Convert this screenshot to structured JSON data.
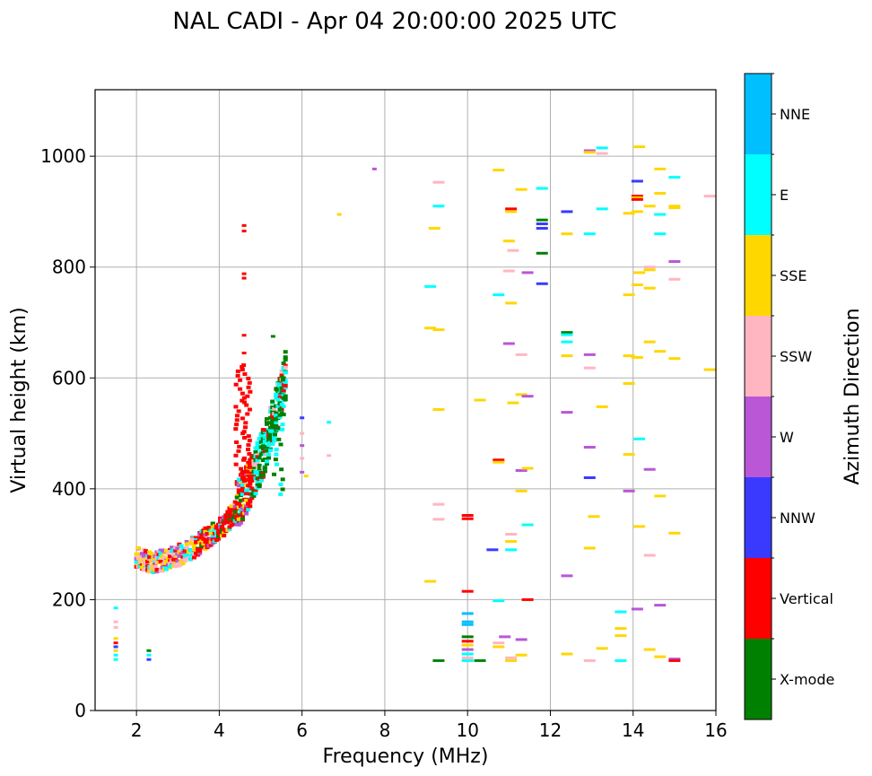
{
  "chart_data": {
    "type": "scatter",
    "title": "NAL CADI - Apr 04 20:00:00 2025 UTC",
    "xlabel": "Frequency (MHz)",
    "ylabel": "Virtual height (km)",
    "xlim": [
      1,
      16
    ],
    "ylim": [
      0,
      1120
    ],
    "xticks": [
      2,
      4,
      6,
      8,
      10,
      12,
      14,
      16
    ],
    "yticks": [
      0,
      200,
      400,
      600,
      800,
      1000
    ],
    "grid": true,
    "colorbar": {
      "label": "Azimuth Direction",
      "categories": [
        {
          "name": "X-mode",
          "color": "#008000"
        },
        {
          "name": "Vertical",
          "color": "#ff0000"
        },
        {
          "name": "NNW",
          "color": "#3a3aff"
        },
        {
          "name": "W",
          "color": "#b957d6"
        },
        {
          "name": "SSW",
          "color": "#ffb6c1"
        },
        {
          "name": "SSE",
          "color": "#ffd700"
        },
        {
          "name": "E",
          "color": "#00ffff"
        },
        {
          "name": "NNE",
          "color": "#00bfff"
        }
      ]
    },
    "trace": [
      {
        "f": 2.0,
        "h": 270
      },
      {
        "f": 2.2,
        "h": 265
      },
      {
        "f": 2.4,
        "h": 263
      },
      {
        "f": 2.6,
        "h": 264
      },
      {
        "f": 2.8,
        "h": 268
      },
      {
        "f": 3.0,
        "h": 274
      },
      {
        "f": 3.2,
        "h": 282
      },
      {
        "f": 3.4,
        "h": 290
      },
      {
        "f": 3.6,
        "h": 300
      },
      {
        "f": 3.8,
        "h": 310
      },
      {
        "f": 4.0,
        "h": 320
      },
      {
        "f": 4.2,
        "h": 335
      },
      {
        "f": 4.4,
        "h": 355
      },
      {
        "f": 4.6,
        "h": 378
      },
      {
        "f": 4.8,
        "h": 405
      },
      {
        "f": 5.0,
        "h": 440
      },
      {
        "f": 5.2,
        "h": 480
      },
      {
        "f": 5.4,
        "h": 530
      },
      {
        "f": 5.6,
        "h": 590
      }
    ],
    "trace_spread_km": 40,
    "points": [
      {
        "f": 1.5,
        "h": 185,
        "c": "E"
      },
      {
        "f": 1.5,
        "h": 160,
        "c": "SSW"
      },
      {
        "f": 1.5,
        "h": 150,
        "c": "SSW"
      },
      {
        "f": 1.5,
        "h": 130,
        "c": "SSE"
      },
      {
        "f": 1.5,
        "h": 122,
        "c": "Vertical"
      },
      {
        "f": 1.5,
        "h": 115,
        "c": "NNW"
      },
      {
        "f": 1.5,
        "h": 108,
        "c": "SSE"
      },
      {
        "f": 1.5,
        "h": 100,
        "c": "E"
      },
      {
        "f": 1.5,
        "h": 92,
        "c": "E"
      },
      {
        "f": 2.3,
        "h": 108,
        "c": "X-mode"
      },
      {
        "f": 2.3,
        "h": 100,
        "c": "E"
      },
      {
        "f": 2.3,
        "h": 92,
        "c": "NNW"
      },
      {
        "f": 4.6,
        "h": 875,
        "c": "Vertical"
      },
      {
        "f": 4.6,
        "h": 865,
        "c": "Vertical"
      },
      {
        "f": 4.6,
        "h": 788,
        "c": "Vertical"
      },
      {
        "f": 4.6,
        "h": 780,
        "c": "Vertical"
      },
      {
        "f": 4.6,
        "h": 677,
        "c": "Vertical"
      },
      {
        "f": 4.6,
        "h": 645,
        "c": "Vertical"
      },
      {
        "f": 5.3,
        "h": 675,
        "c": "X-mode"
      },
      {
        "f": 6.0,
        "h": 528,
        "c": "NNW"
      },
      {
        "f": 6.0,
        "h": 500,
        "c": "SSW"
      },
      {
        "f": 6.0,
        "h": 478,
        "c": "W"
      },
      {
        "f": 6.0,
        "h": 455,
        "c": "SSW"
      },
      {
        "f": 6.0,
        "h": 430,
        "c": "W"
      },
      {
        "f": 6.1,
        "h": 423,
        "c": "SSE"
      },
      {
        "f": 6.65,
        "h": 520,
        "c": "E"
      },
      {
        "f": 6.65,
        "h": 460,
        "c": "SSW"
      },
      {
        "f": 7.75,
        "h": 977,
        "c": "W"
      },
      {
        "f": 6.9,
        "h": 895,
        "c": "SSE"
      },
      {
        "f": 9.1,
        "h": 765,
        "c": "E"
      },
      {
        "f": 9.1,
        "h": 690,
        "c": "SSE"
      },
      {
        "f": 9.3,
        "h": 687,
        "c": "SSE"
      },
      {
        "f": 9.2,
        "h": 870,
        "c": "SSE"
      },
      {
        "f": 9.3,
        "h": 953,
        "c": "SSW"
      },
      {
        "f": 9.3,
        "h": 910,
        "c": "E"
      },
      {
        "f": 9.3,
        "h": 543,
        "c": "SSE"
      },
      {
        "f": 9.3,
        "h": 372,
        "c": "SSW"
      },
      {
        "f": 9.3,
        "h": 345,
        "c": "SSW"
      },
      {
        "f": 9.1,
        "h": 233,
        "c": "SSE"
      },
      {
        "f": 9.3,
        "h": 90,
        "c": "X-mode"
      },
      {
        "f": 10.0,
        "h": 352,
        "c": "Vertical"
      },
      {
        "f": 10.0,
        "h": 346,
        "c": "Vertical"
      },
      {
        "f": 10.0,
        "h": 215,
        "c": "Vertical"
      },
      {
        "f": 10.0,
        "h": 175,
        "c": "NNE"
      },
      {
        "f": 10.0,
        "h": 160,
        "c": "NNE"
      },
      {
        "f": 10.0,
        "h": 155,
        "c": "NNE"
      },
      {
        "f": 10.0,
        "h": 133,
        "c": "X-mode"
      },
      {
        "f": 10.0,
        "h": 125,
        "c": "Vertical"
      },
      {
        "f": 10.0,
        "h": 118,
        "c": "SSE"
      },
      {
        "f": 10.0,
        "h": 110,
        "c": "W"
      },
      {
        "f": 10.0,
        "h": 102,
        "c": "E"
      },
      {
        "f": 10.0,
        "h": 95,
        "c": "SSW"
      },
      {
        "f": 10.0,
        "h": 90,
        "c": "E"
      },
      {
        "f": 10.3,
        "h": 90,
        "c": "X-mode"
      },
      {
        "f": 10.3,
        "h": 560,
        "c": "SSE"
      },
      {
        "f": 10.6,
        "h": 290,
        "c": "NNW"
      },
      {
        "f": 10.75,
        "h": 975,
        "c": "SSE"
      },
      {
        "f": 10.75,
        "h": 750,
        "c": "E"
      },
      {
        "f": 10.75,
        "h": 452,
        "c": "Vertical"
      },
      {
        "f": 10.75,
        "h": 448,
        "c": "SSE"
      },
      {
        "f": 10.75,
        "h": 198,
        "c": "E"
      },
      {
        "f": 10.75,
        "h": 122,
        "c": "SSW"
      },
      {
        "f": 10.75,
        "h": 115,
        "c": "SSE"
      },
      {
        "f": 10.9,
        "h": 133,
        "c": "W"
      },
      {
        "f": 11.05,
        "h": 905,
        "c": "Vertical"
      },
      {
        "f": 11.05,
        "h": 900,
        "c": "SSE"
      },
      {
        "f": 11.0,
        "h": 847,
        "c": "SSE"
      },
      {
        "f": 11.1,
        "h": 830,
        "c": "SSW"
      },
      {
        "f": 11.0,
        "h": 793,
        "c": "SSW"
      },
      {
        "f": 11.05,
        "h": 735,
        "c": "SSE"
      },
      {
        "f": 11.0,
        "h": 662,
        "c": "W"
      },
      {
        "f": 11.1,
        "h": 555,
        "c": "SSE"
      },
      {
        "f": 11.05,
        "h": 318,
        "c": "SSW"
      },
      {
        "f": 11.05,
        "h": 305,
        "c": "SSE"
      },
      {
        "f": 11.05,
        "h": 290,
        "c": "E"
      },
      {
        "f": 11.05,
        "h": 95,
        "c": "SSW"
      },
      {
        "f": 11.05,
        "h": 90,
        "c": "SSE"
      },
      {
        "f": 11.3,
        "h": 940,
        "c": "SSE"
      },
      {
        "f": 11.3,
        "h": 642,
        "c": "SSW"
      },
      {
        "f": 11.3,
        "h": 570,
        "c": "SSE"
      },
      {
        "f": 11.3,
        "h": 433,
        "c": "W"
      },
      {
        "f": 11.3,
        "h": 396,
        "c": "SSE"
      },
      {
        "f": 11.3,
        "h": 128,
        "c": "W"
      },
      {
        "f": 11.3,
        "h": 100,
        "c": "SSE"
      },
      {
        "f": 11.45,
        "h": 790,
        "c": "W"
      },
      {
        "f": 11.45,
        "h": 567,
        "c": "W"
      },
      {
        "f": 11.45,
        "h": 437,
        "c": "SSE"
      },
      {
        "f": 11.45,
        "h": 335,
        "c": "E"
      },
      {
        "f": 11.45,
        "h": 200,
        "c": "Vertical"
      },
      {
        "f": 11.8,
        "h": 942,
        "c": "E"
      },
      {
        "f": 11.8,
        "h": 885,
        "c": "X-mode"
      },
      {
        "f": 11.8,
        "h": 878,
        "c": "NNW"
      },
      {
        "f": 11.8,
        "h": 870,
        "c": "NNW"
      },
      {
        "f": 11.8,
        "h": 825,
        "c": "X-mode"
      },
      {
        "f": 11.8,
        "h": 770,
        "c": "NNW"
      },
      {
        "f": 12.4,
        "h": 900,
        "c": "NNW"
      },
      {
        "f": 12.4,
        "h": 860,
        "c": "SSE"
      },
      {
        "f": 12.4,
        "h": 682,
        "c": "X-mode"
      },
      {
        "f": 12.4,
        "h": 678,
        "c": "E"
      },
      {
        "f": 12.4,
        "h": 665,
        "c": "E"
      },
      {
        "f": 12.4,
        "h": 640,
        "c": "SSE"
      },
      {
        "f": 12.4,
        "h": 538,
        "c": "W"
      },
      {
        "f": 12.4,
        "h": 243,
        "c": "W"
      },
      {
        "f": 12.4,
        "h": 102,
        "c": "SSE"
      },
      {
        "f": 12.95,
        "h": 1010,
        "c": "W"
      },
      {
        "f": 12.95,
        "h": 1007,
        "c": "SSE"
      },
      {
        "f": 12.95,
        "h": 860,
        "c": "E"
      },
      {
        "f": 12.95,
        "h": 642,
        "c": "W"
      },
      {
        "f": 12.95,
        "h": 618,
        "c": "SSW"
      },
      {
        "f": 12.95,
        "h": 475,
        "c": "W"
      },
      {
        "f": 12.95,
        "h": 420,
        "c": "NNW"
      },
      {
        "f": 13.05,
        "h": 350,
        "c": "SSE"
      },
      {
        "f": 12.95,
        "h": 293,
        "c": "SSE"
      },
      {
        "f": 12.95,
        "h": 90,
        "c": "SSW"
      },
      {
        "f": 13.25,
        "h": 1015,
        "c": "E"
      },
      {
        "f": 13.25,
        "h": 1005,
        "c": "SSW"
      },
      {
        "f": 13.25,
        "h": 905,
        "c": "E"
      },
      {
        "f": 13.25,
        "h": 548,
        "c": "SSE"
      },
      {
        "f": 13.25,
        "h": 112,
        "c": "SSE"
      },
      {
        "f": 13.7,
        "h": 178,
        "c": "E"
      },
      {
        "f": 13.7,
        "h": 148,
        "c": "SSE"
      },
      {
        "f": 13.7,
        "h": 135,
        "c": "SSE"
      },
      {
        "f": 13.7,
        "h": 90,
        "c": "E"
      },
      {
        "f": 13.9,
        "h": 897,
        "c": "SSE"
      },
      {
        "f": 13.9,
        "h": 750,
        "c": "SSE"
      },
      {
        "f": 13.9,
        "h": 640,
        "c": "SSE"
      },
      {
        "f": 13.9,
        "h": 590,
        "c": "SSE"
      },
      {
        "f": 13.9,
        "h": 462,
        "c": "SSE"
      },
      {
        "f": 13.9,
        "h": 396,
        "c": "W"
      },
      {
        "f": 14.15,
        "h": 1017,
        "c": "SSE"
      },
      {
        "f": 14.1,
        "h": 955,
        "c": "NNW"
      },
      {
        "f": 14.1,
        "h": 928,
        "c": "Vertical"
      },
      {
        "f": 14.1,
        "h": 925,
        "c": "SSE"
      },
      {
        "f": 14.1,
        "h": 922,
        "c": "Vertical"
      },
      {
        "f": 14.1,
        "h": 900,
        "c": "SSE"
      },
      {
        "f": 14.15,
        "h": 790,
        "c": "SSE"
      },
      {
        "f": 14.1,
        "h": 768,
        "c": "SSE"
      },
      {
        "f": 14.1,
        "h": 637,
        "c": "SSE"
      },
      {
        "f": 14.15,
        "h": 490,
        "c": "E"
      },
      {
        "f": 14.15,
        "h": 332,
        "c": "SSE"
      },
      {
        "f": 14.1,
        "h": 183,
        "c": "W"
      },
      {
        "f": 14.4,
        "h": 910,
        "c": "SSE"
      },
      {
        "f": 14.4,
        "h": 800,
        "c": "SSW"
      },
      {
        "f": 14.4,
        "h": 795,
        "c": "SSE"
      },
      {
        "f": 14.4,
        "h": 762,
        "c": "SSE"
      },
      {
        "f": 14.4,
        "h": 665,
        "c": "SSE"
      },
      {
        "f": 14.4,
        "h": 435,
        "c": "W"
      },
      {
        "f": 14.4,
        "h": 280,
        "c": "SSW"
      },
      {
        "f": 14.4,
        "h": 110,
        "c": "SSE"
      },
      {
        "f": 14.65,
        "h": 977,
        "c": "SSE"
      },
      {
        "f": 14.65,
        "h": 933,
        "c": "SSE"
      },
      {
        "f": 14.65,
        "h": 895,
        "c": "E"
      },
      {
        "f": 14.65,
        "h": 860,
        "c": "E"
      },
      {
        "f": 14.65,
        "h": 648,
        "c": "SSE"
      },
      {
        "f": 14.65,
        "h": 387,
        "c": "SSE"
      },
      {
        "f": 14.65,
        "h": 190,
        "c": "W"
      },
      {
        "f": 14.65,
        "h": 97,
        "c": "SSE"
      },
      {
        "f": 15.0,
        "h": 962,
        "c": "E"
      },
      {
        "f": 15.0,
        "h": 910,
        "c": "SSE"
      },
      {
        "f": 15.0,
        "h": 907,
        "c": "SSE"
      },
      {
        "f": 15.0,
        "h": 810,
        "c": "W"
      },
      {
        "f": 15.0,
        "h": 778,
        "c": "SSW"
      },
      {
        "f": 15.0,
        "h": 635,
        "c": "SSE"
      },
      {
        "f": 15.0,
        "h": 320,
        "c": "SSE"
      },
      {
        "f": 15.0,
        "h": 93,
        "c": "W"
      },
      {
        "f": 15.0,
        "h": 90,
        "c": "Vertical"
      },
      {
        "f": 15.85,
        "h": 928,
        "c": "SSW"
      },
      {
        "f": 15.85,
        "h": 615,
        "c": "SSE"
      }
    ]
  }
}
